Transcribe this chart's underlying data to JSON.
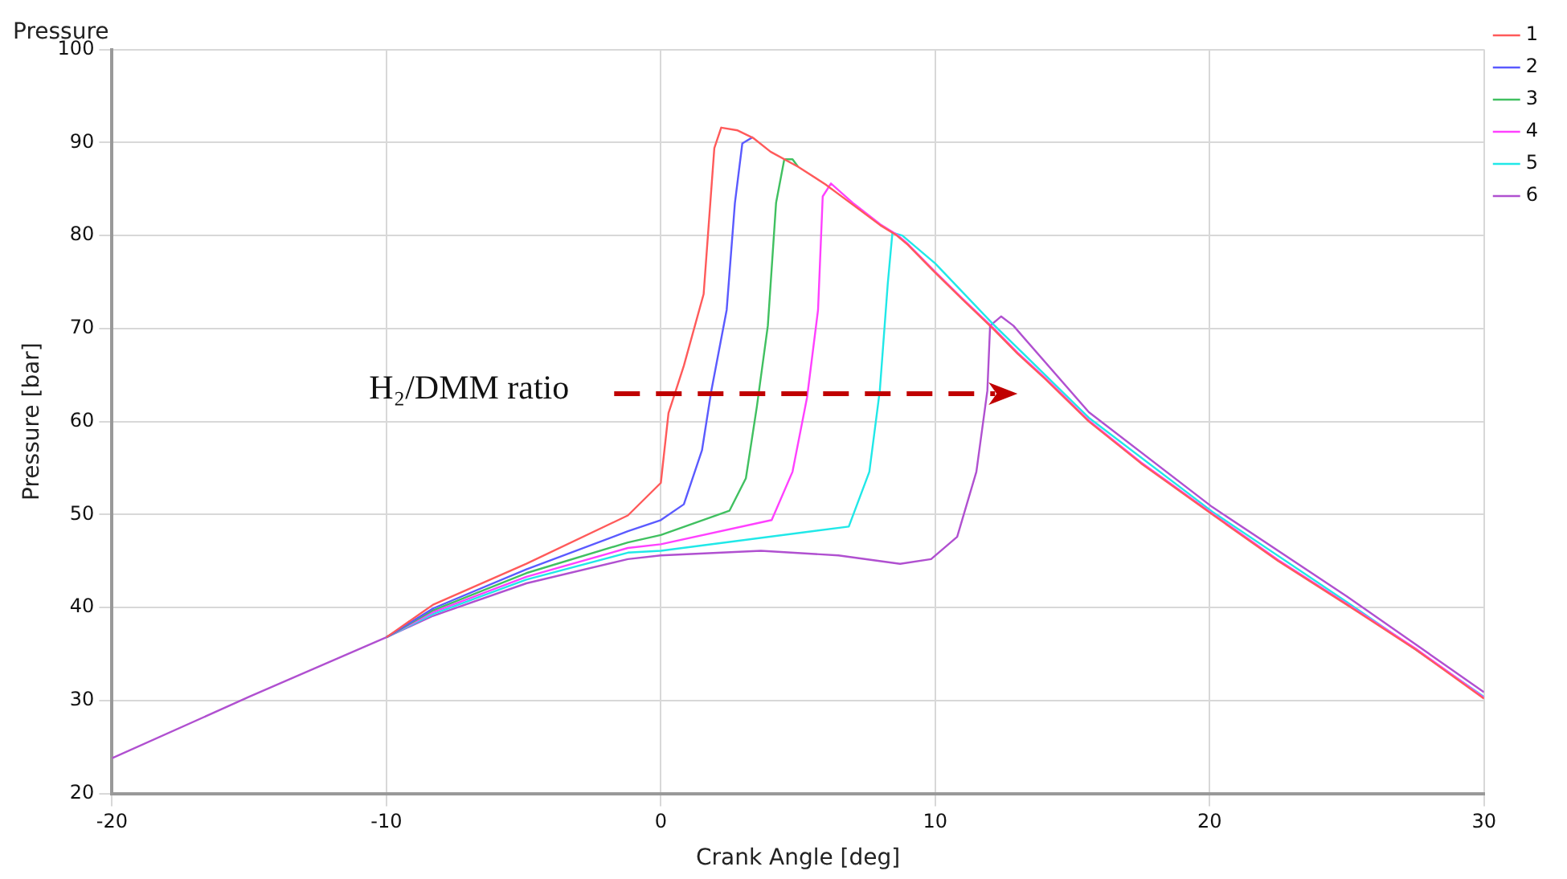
{
  "chart_data": {
    "type": "line",
    "title": "Pressure",
    "xlabel": "Crank Angle [deg]",
    "ylabel": "Pressure [bar]",
    "annotations": [
      "H₂/DMM ratio"
    ],
    "xlim": [
      -20,
      30
    ],
    "xticks": [
      -20,
      -10,
      0,
      10,
      20,
      30
    ],
    "ylim": [
      20,
      100
    ],
    "yticks": [
      20,
      30,
      40,
      50,
      60,
      70,
      80,
      90,
      100
    ],
    "grid": true,
    "legend": "top right",
    "marker": "none",
    "line_style": "solid",
    "series": [
      {
        "name": "1",
        "color": "#ff5a5a",
        "x": [
          -10,
          -8.3,
          -4.9,
          -1.2,
          0,
          0.28,
          0.84,
          1.56,
          1.95,
          2.2,
          2.8,
          3.36,
          4,
          5,
          6,
          7,
          8,
          8.6,
          9,
          10,
          11,
          12.1,
          13,
          14,
          15.6,
          17.5,
          20.1,
          22.5,
          25,
          27.5,
          30
        ],
        "values": [
          36.8,
          40.3,
          44.7,
          49.9,
          53.4,
          60.9,
          66,
          73.7,
          89.4,
          91.6,
          91.3,
          90.5,
          89,
          87.4,
          85.5,
          83.3,
          81.1,
          80,
          79,
          76,
          73.1,
          70,
          67.3,
          64.6,
          60,
          55.5,
          50,
          45,
          40.3,
          35.5,
          30.2
        ]
      },
      {
        "name": "2",
        "color": "#5a5aff",
        "x": [
          -10,
          -8.3,
          -4.9,
          -1.2,
          0,
          0.84,
          1.5,
          1.84,
          2.4,
          2.7,
          2.97,
          3.36
        ],
        "values": [
          36.8,
          39.9,
          44.1,
          48.2,
          49.4,
          51.1,
          56.9,
          63.3,
          72,
          83.5,
          89.9,
          90.6
        ]
      },
      {
        "name": "3",
        "color": "#40c060",
        "x": [
          -10,
          -8.3,
          -4.9,
          -1.2,
          0,
          2.5,
          3.1,
          3.5,
          3.9,
          4.2,
          4.5,
          4.8,
          5
        ],
        "values": [
          36.8,
          39.7,
          43.7,
          47,
          47.8,
          50.4,
          53.9,
          61.6,
          70.3,
          83.5,
          88.2,
          88.2,
          87.4
        ]
      },
      {
        "name": "4",
        "color": "#ff40ff",
        "x": [
          -10,
          -8.3,
          -4.9,
          -1.2,
          0,
          4.04,
          4.8,
          5.33,
          5.73,
          5.9,
          6.2,
          7,
          8,
          8.6,
          9,
          10,
          11,
          12.1,
          13,
          14,
          15.6,
          17.5,
          20.1,
          22.5,
          25,
          27.5,
          30
        ],
        "values": [
          36.8,
          39.5,
          43.3,
          46.4,
          46.8,
          49.4,
          54.6,
          62.6,
          72,
          84.2,
          85.6,
          83.5,
          81.2,
          80.1,
          79.1,
          76.1,
          73.2,
          70.1,
          67.4,
          64.7,
          60.1,
          55.6,
          50.1,
          45.1,
          40.4,
          35.6,
          30.3
        ]
      },
      {
        "name": "5",
        "color": "#20e8e8",
        "x": [
          -10,
          -8.3,
          -4.9,
          -1.2,
          0,
          6.85,
          7.6,
          7.98,
          8.27,
          8.44,
          8.8,
          10,
          12.1,
          15.6,
          20.1,
          25,
          30
        ],
        "values": [
          36.8,
          39.3,
          43,
          45.9,
          46.1,
          48.7,
          54.6,
          63.3,
          74.8,
          80.3,
          80,
          77,
          70.5,
          60.4,
          50.3,
          40.6,
          30.4
        ]
      },
      {
        "name": "6",
        "color": "#b050d0",
        "x": [
          -20,
          -15,
          -10,
          -8.3,
          -4.9,
          -1.2,
          0,
          3.65,
          6.47,
          8.72,
          9.85,
          10.8,
          11.5,
          11.9,
          12,
          12.4,
          12.85,
          15.6,
          20.1,
          25,
          30
        ],
        "values": [
          23.8,
          30.4,
          36.8,
          39.1,
          42.6,
          45.2,
          45.6,
          46.1,
          45.6,
          44.7,
          45.2,
          47.6,
          54.6,
          63.3,
          70.3,
          71.3,
          70.3,
          61,
          50.8,
          41.2,
          30.9
        ]
      }
    ]
  }
}
